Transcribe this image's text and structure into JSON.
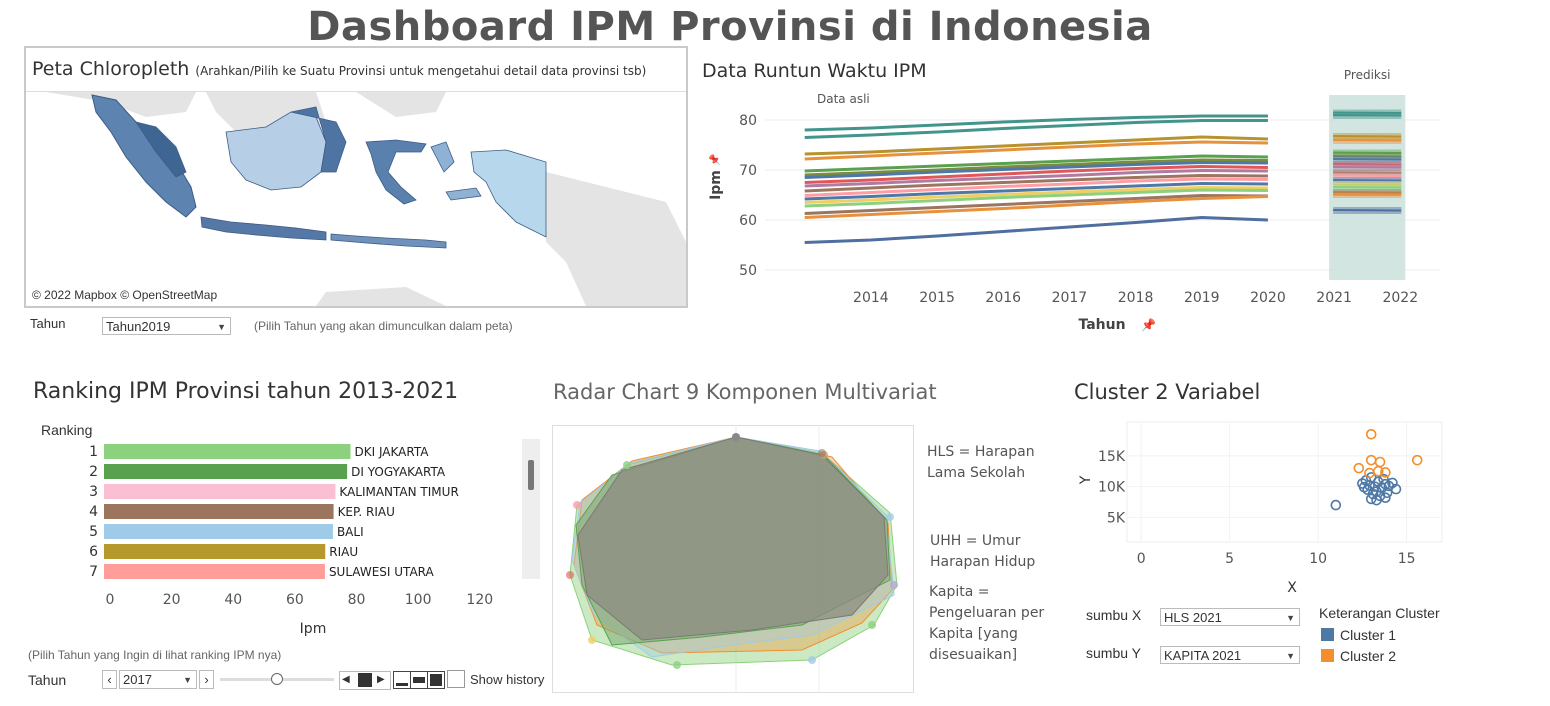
{
  "title": "Dashboard IPM Provinsi di Indonesia",
  "map": {
    "title": "Peta Chloropleth",
    "subtitle": "(Arahkan/Pilih ke  Suatu Provinsi untuk mengetahui detail data provinsi tsb)",
    "credit": "© 2022 Mapbox © OpenStreetMap",
    "year_label": "Tahun",
    "year_value": "Tahun2019",
    "year_hint": "(Pilih Tahun yang akan dimunculkan dalam peta)"
  },
  "timeseries": {
    "title": "Data Runtun Waktu IPM",
    "annotation_actual": "Data asli",
    "annotation_forecast": "Prediksi",
    "xlabel": "Tahun",
    "ylabel": "Ipm",
    "pin_icon": "pin-icon"
  },
  "ranking": {
    "title": "Ranking IPM Provinsi tahun 2013-2021",
    "rank_header": "Ranking",
    "xlabel": "Ipm",
    "hint": "(Pilih Tahun yang Ingin di lihat ranking IPM nya)",
    "year_label": "Tahun",
    "year_value": "2017",
    "show_history": "Show history"
  },
  "radar": {
    "title": "Radar Chart 9 Komponen Multivariat",
    "notes": [
      "HLS = Harapan Lama Sekolah",
      "UHH = Umur Harapan Hidup",
      "Kapita = Pengeluaran per Kapita [yang disesuaikan]"
    ]
  },
  "cluster": {
    "title": "Cluster 2 Variabel",
    "xlabel": "X",
    "ylabel": "Y",
    "sumbu_x_label": "sumbu X",
    "sumbu_x_value": "HLS 2021",
    "sumbu_y_label": "sumbu Y",
    "sumbu_y_value": "KAPITA 2021",
    "legend_title": "Keterangan Cluster",
    "legend": [
      {
        "name": "Cluster 1",
        "color": "#4e79a7"
      },
      {
        "name": "Cluster 2",
        "color": "#f28e2b"
      }
    ]
  },
  "chart_data": [
    {
      "type": "line",
      "title": "Data Runtun Waktu IPM",
      "xlabel": "Tahun",
      "ylabel": "Ipm",
      "x": [
        2013,
        2014,
        2015,
        2016,
        2017,
        2018,
        2019,
        2020
      ],
      "x_ticks": [
        "2014",
        "2015",
        "2016",
        "2017",
        "2018",
        "2019",
        "2020",
        "2021",
        "2022"
      ],
      "y_ticks": [
        "50",
        "60",
        "70",
        "80"
      ],
      "ylim": [
        48,
        85
      ],
      "xlim": [
        2012.4,
        2022.6
      ],
      "forecast_years": [
        2021,
        2022
      ],
      "series": [
        {
          "color": "#43958c",
          "values": [
            78.0,
            78.4,
            79.0,
            79.6,
            80.1,
            80.5,
            80.8,
            80.8
          ],
          "forecast": 81.5
        },
        {
          "color": "#43958c",
          "values": [
            76.5,
            77.0,
            77.6,
            78.3,
            78.9,
            79.5,
            79.9,
            79.9
          ],
          "forecast": 81.0
        },
        {
          "color": "#b7932d",
          "values": [
            73.2,
            73.6,
            74.2,
            74.8,
            75.4,
            76.0,
            76.6,
            76.2
          ],
          "forecast": 76.8
        },
        {
          "color": "#e7913c",
          "values": [
            72.2,
            72.8,
            73.4,
            74.0,
            74.6,
            75.2,
            75.6,
            75.4
          ],
          "forecast": 76.0
        },
        {
          "color": "#59a14f",
          "values": [
            69.8,
            70.3,
            70.8,
            71.3,
            71.8,
            72.3,
            72.8,
            72.6
          ],
          "forecast": 73.5
        },
        {
          "color": "#7d8c3a",
          "values": [
            69.0,
            69.5,
            70.0,
            70.6,
            71.1,
            71.6,
            72.0,
            71.9
          ],
          "forecast": 72.8
        },
        {
          "color": "#4e79a7",
          "values": [
            68.5,
            69.0,
            69.6,
            70.1,
            70.6,
            71.1,
            71.5,
            71.4
          ],
          "forecast": 72.2
        },
        {
          "color": "#e15759",
          "values": [
            67.5,
            68.0,
            68.6,
            69.2,
            69.8,
            70.3,
            70.7,
            70.5
          ],
          "forecast": 71.2
        },
        {
          "color": "#b07aa1",
          "values": [
            66.8,
            67.3,
            67.9,
            68.4,
            68.9,
            69.5,
            69.9,
            69.8
          ],
          "forecast": 70.6
        },
        {
          "color": "#9c755f",
          "values": [
            65.8,
            66.4,
            67.0,
            67.5,
            68.0,
            68.5,
            68.9,
            68.8
          ],
          "forecast": 69.5
        },
        {
          "color": "#ff9da7",
          "values": [
            64.9,
            65.5,
            66.1,
            66.7,
            67.2,
            67.8,
            68.2,
            68.1
          ],
          "forecast": 68.9
        },
        {
          "color": "#4e79a7",
          "values": [
            64.2,
            64.7,
            65.3,
            65.8,
            66.3,
            66.8,
            67.3,
            67.2
          ],
          "forecast": 68.0
        },
        {
          "color": "#f1ce63",
          "values": [
            63.5,
            64.0,
            64.6,
            65.1,
            65.6,
            66.1,
            66.5,
            66.4
          ],
          "forecast": 67.2
        },
        {
          "color": "#8cd17d",
          "values": [
            62.8,
            63.3,
            63.9,
            64.5,
            65.0,
            65.5,
            66.0,
            65.9
          ],
          "forecast": 66.6
        },
        {
          "color": "#9c755f",
          "values": [
            61.3,
            61.9,
            62.5,
            63.1,
            63.7,
            64.3,
            64.9,
            64.8
          ],
          "forecast": 65.6
        },
        {
          "color": "#e7913c",
          "values": [
            60.5,
            61.1,
            61.7,
            62.3,
            63.0,
            63.7,
            64.3,
            64.7
          ],
          "forecast": 65.2
        },
        {
          "color": "#4e6fa0",
          "values": [
            55.5,
            56.0,
            56.8,
            57.7,
            58.6,
            59.5,
            60.5,
            60.0
          ],
          "forecast": 62.0
        }
      ]
    },
    {
      "type": "bar",
      "title": "Ranking IPM Provinsi tahun 2013-2021",
      "xlabel": "Ipm",
      "categories": [
        "DKI JAKARTA",
        "DI YOGYAKARTA",
        "KALIMANTAN TIMUR",
        "KEP. RIAU",
        "BALI",
        "RIAU",
        "SULAWESI UTARA"
      ],
      "ranks": [
        "1",
        "2",
        "3",
        "4",
        "5",
        "6",
        "7"
      ],
      "values": [
        80.0,
        78.9,
        75.1,
        74.5,
        74.3,
        71.8,
        71.7
      ],
      "colors": [
        "#8cd17d",
        "#59a14f",
        "#fabfd2",
        "#9c755f",
        "#a0cbe8",
        "#b6992d",
        "#ff9d9a"
      ],
      "x_ticks": [
        "0",
        "20",
        "40",
        "60",
        "80",
        "100",
        "120"
      ],
      "xlim": [
        0,
        135
      ]
    },
    {
      "type": "scatter",
      "title": "Cluster 2 Variabel",
      "xlabel": "X",
      "ylabel": "Y",
      "x_ticks": [
        "0",
        "5",
        "10",
        "15"
      ],
      "y_ticks": [
        "5K",
        "10K",
        "15K"
      ],
      "xlim": [
        -0.8,
        17
      ],
      "ylim": [
        1000,
        20500
      ],
      "series": [
        {
          "name": "Cluster 1",
          "color": "#4e79a7",
          "points": [
            [
              11.0,
              7000
            ],
            [
              12.5,
              10500
            ],
            [
              12.7,
              11000
            ],
            [
              12.8,
              9500
            ],
            [
              12.9,
              10200
            ],
            [
              13.0,
              11500
            ],
            [
              13.1,
              8800
            ],
            [
              13.2,
              10000
            ],
            [
              13.3,
              9200
            ],
            [
              13.4,
              10800
            ],
            [
              13.5,
              8500
            ],
            [
              13.6,
              9800
            ],
            [
              13.7,
              11200
            ],
            [
              13.8,
              10400
            ],
            [
              13.9,
              9000
            ],
            [
              14.0,
              10100
            ],
            [
              14.2,
              10600
            ],
            [
              14.4,
              9600
            ],
            [
              13.0,
              8000
            ],
            [
              13.3,
              7800
            ],
            [
              12.6,
              9900
            ],
            [
              13.8,
              8200
            ]
          ]
        },
        {
          "name": "Cluster 2",
          "color": "#f28e2b",
          "points": [
            [
              13.0,
              18500
            ],
            [
              15.6,
              14300
            ],
            [
              12.3,
              13000
            ],
            [
              13.0,
              14300
            ],
            [
              13.5,
              14000
            ],
            [
              12.9,
              12200
            ],
            [
              13.4,
              12500
            ],
            [
              13.8,
              12300
            ]
          ]
        }
      ]
    }
  ]
}
